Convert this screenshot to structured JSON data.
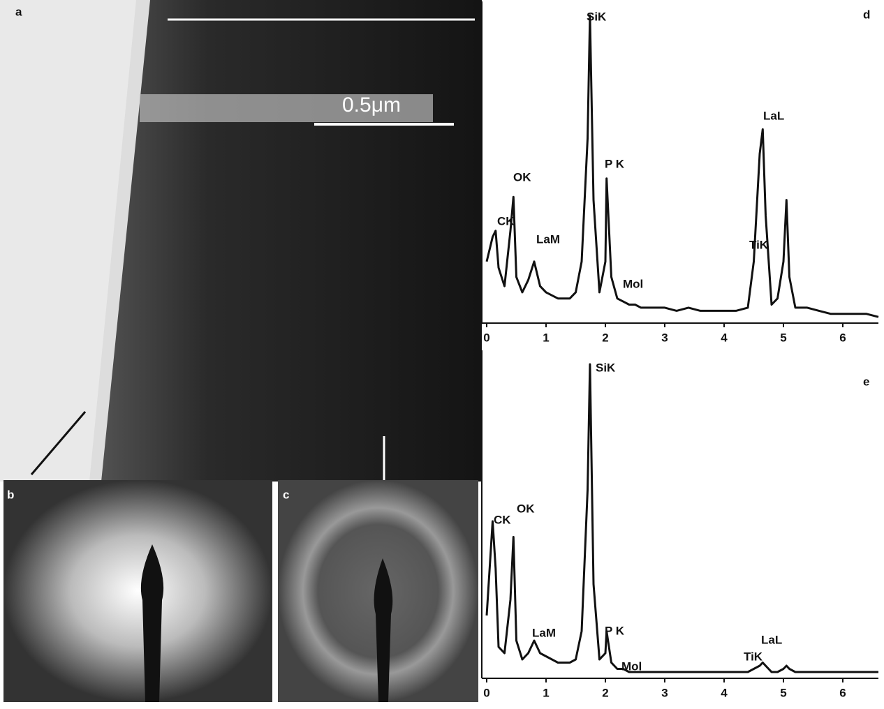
{
  "image_panels": [
    {
      "label": "a"
    },
    {
      "label": "b"
    },
    {
      "label": "c"
    }
  ],
  "scale_bar": "0.5μm",
  "chart_data": [
    {
      "type": "line",
      "panel": "d",
      "xlim": [
        0,
        6.6
      ],
      "ylim": [
        0,
        100
      ],
      "xticks": [
        0,
        1,
        2,
        3,
        4,
        5,
        6
      ],
      "color": "#111111",
      "annotations": [
        "SiK",
        "OK",
        "CK",
        "LaM",
        "P K",
        "Mol",
        "LaL",
        "TiK"
      ],
      "x": [
        0,
        0.1,
        0.15,
        0.2,
        0.3,
        0.4,
        0.45,
        0.5,
        0.6,
        0.7,
        0.8,
        0.9,
        1.0,
        1.1,
        1.2,
        1.3,
        1.4,
        1.5,
        1.6,
        1.7,
        1.74,
        1.8,
        1.9,
        2.0,
        2.02,
        2.1,
        2.2,
        2.3,
        2.4,
        2.5,
        2.6,
        2.8,
        3.0,
        3.2,
        3.4,
        3.6,
        3.8,
        4.0,
        4.2,
        4.4,
        4.5,
        4.6,
        4.65,
        4.7,
        4.8,
        4.9,
        5.0,
        5.05,
        5.1,
        5.2,
        5.4,
        5.6,
        5.8,
        6.0,
        6.2,
        6.4,
        6.6
      ],
      "values": [
        20,
        28,
        30,
        18,
        12,
        30,
        41,
        15,
        10,
        14,
        20,
        12,
        10,
        9,
        8,
        8,
        8,
        10,
        20,
        60,
        100,
        40,
        10,
        20,
        47,
        15,
        8,
        7,
        6,
        6,
        5,
        5,
        5,
        4,
        5,
        4,
        4,
        4,
        4,
        5,
        20,
        55,
        63,
        35,
        6,
        8,
        20,
        40,
        15,
        5,
        5,
        4,
        3,
        3,
        3,
        3,
        2
      ]
    },
    {
      "type": "line",
      "panel": "e",
      "xlim": [
        0,
        6.6
      ],
      "ylim": [
        0,
        100
      ],
      "xticks": [
        0,
        1,
        2,
        3,
        4,
        5,
        6
      ],
      "color": "#111111",
      "annotations": [
        "SiK",
        "OK",
        "CK",
        "LaM",
        "P K",
        "Mol",
        "LaL",
        "TiK"
      ],
      "x": [
        0,
        0.1,
        0.15,
        0.2,
        0.3,
        0.4,
        0.45,
        0.5,
        0.6,
        0.7,
        0.8,
        0.9,
        1.0,
        1.1,
        1.2,
        1.3,
        1.4,
        1.5,
        1.6,
        1.7,
        1.74,
        1.8,
        1.9,
        2.0,
        2.02,
        2.1,
        2.2,
        2.3,
        2.4,
        2.5,
        2.6,
        2.8,
        3.0,
        3.2,
        3.4,
        3.6,
        3.8,
        4.0,
        4.2,
        4.4,
        4.5,
        4.6,
        4.65,
        4.7,
        4.8,
        4.9,
        5.0,
        5.05,
        5.1,
        5.2,
        5.4,
        5.6,
        5.8,
        6.0,
        6.2,
        6.4,
        6.6
      ],
      "values": [
        20,
        50,
        35,
        10,
        8,
        25,
        45,
        12,
        6,
        8,
        12,
        8,
        7,
        6,
        5,
        5,
        5,
        6,
        15,
        60,
        100,
        30,
        6,
        8,
        15,
        5,
        3,
        3,
        2,
        2,
        2,
        2,
        2,
        2,
        2,
        2,
        2,
        2,
        2,
        2,
        3,
        4,
        5,
        4,
        2,
        2,
        3,
        4,
        3,
        2,
        2,
        2,
        2,
        2,
        2,
        2,
        2
      ]
    }
  ]
}
